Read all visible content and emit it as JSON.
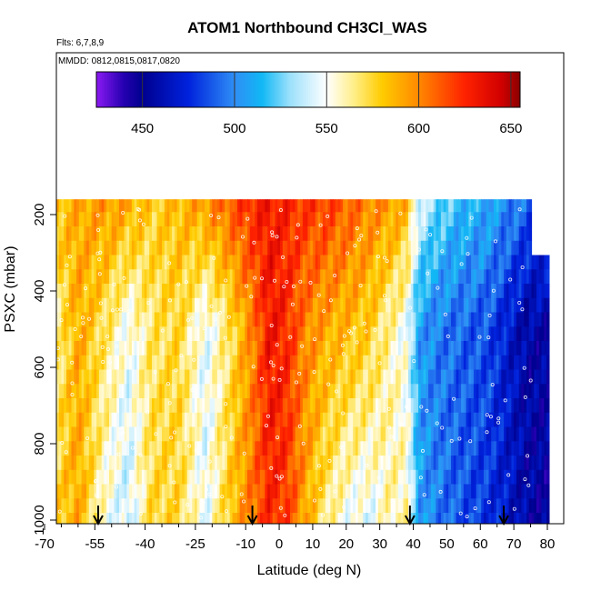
{
  "chart_data": {
    "type": "heatmap",
    "title": "ATOM1 Northbound CH3Cl_WAS",
    "subtitle_flights": "Flts: 6,7,8,9",
    "subtitle_dates": "MMDD: 0812,0815,0817,0820",
    "xlabel": "Latitude (deg N)",
    "ylabel": "PSXC (mbar)",
    "xlim": [
      -70,
      80
    ],
    "ylim": [
      1000,
      150
    ],
    "x_ticks": [
      -70,
      -55,
      -40,
      -25,
      -10,
      0,
      10,
      20,
      30,
      40,
      50,
      60,
      70,
      80
    ],
    "x_minor_ticks": [
      -65,
      -60,
      -50,
      -45,
      -35,
      -30,
      -20,
      -15,
      -5,
      5,
      15,
      25,
      35,
      45,
      55,
      65,
      75
    ],
    "y_ticks": [
      200,
      400,
      600,
      800,
      1000
    ],
    "colorbar": {
      "range": [
        425,
        655
      ],
      "ticks": [
        450,
        500,
        550,
        600,
        650
      ],
      "stops": [
        {
          "v": 425,
          "c": "#8b1af2"
        },
        {
          "v": 440,
          "c": "#2400b0"
        },
        {
          "v": 450,
          "c": "#00008f"
        },
        {
          "v": 475,
          "c": "#0022dd"
        },
        {
          "v": 500,
          "c": "#2f8ef5"
        },
        {
          "v": 515,
          "c": "#11b8f5"
        },
        {
          "v": 530,
          "c": "#9be0fb"
        },
        {
          "v": 550,
          "c": "#ffffff"
        },
        {
          "v": 565,
          "c": "#ffee88"
        },
        {
          "v": 580,
          "c": "#ffcc00"
        },
        {
          "v": 600,
          "c": "#ff8800"
        },
        {
          "v": 625,
          "c": "#ff2200"
        },
        {
          "v": 645,
          "c": "#d00000"
        },
        {
          "v": 655,
          "c": "#8b0000"
        }
      ]
    },
    "pressure_levels": [
      175,
      212,
      250,
      287,
      325,
      362,
      400,
      437,
      475,
      512,
      550,
      587,
      625,
      662,
      700,
      737,
      775,
      812,
      850,
      887,
      925,
      962,
      1000
    ],
    "profile_latitudes": [
      -54,
      -8,
      39,
      67
    ],
    "field_model": {
      "lat_knots": [
        -68,
        -60,
        -52,
        -45,
        -38,
        -30,
        -22,
        -15,
        -8,
        -3,
        2,
        8,
        14,
        20,
        27,
        33,
        38,
        42,
        48,
        55,
        62,
        68,
        74,
        80
      ],
      "upper_values": [
        580,
        590,
        595,
        590,
        578,
        585,
        595,
        610,
        625,
        630,
        625,
        620,
        618,
        610,
        600,
        595,
        585,
        540,
        525,
        515,
        510,
        500,
        490,
        485
      ],
      "mid_values": [
        555,
        590,
        570,
        548,
        568,
        575,
        545,
        568,
        600,
        632,
        625,
        600,
        590,
        585,
        578,
        560,
        548,
        505,
        495,
        490,
        485,
        470,
        455,
        455
      ],
      "lower_values": [
        575,
        590,
        552,
        538,
        575,
        575,
        545,
        580,
        605,
        625,
        620,
        590,
        565,
        550,
        545,
        560,
        560,
        505,
        495,
        485,
        478,
        468,
        455,
        450
      ]
    }
  }
}
